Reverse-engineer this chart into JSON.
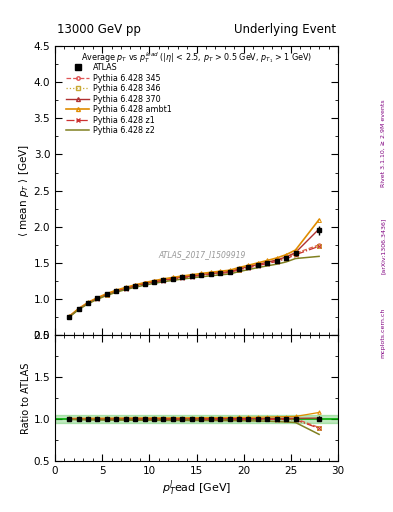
{
  "title_left": "13000 GeV pp",
  "title_right": "Underlying Event",
  "watermark": "ATLAS_2017_I1509919",
  "ylim_main": [
    0.5,
    4.5
  ],
  "ylim_ratio": [
    0.5,
    2.0
  ],
  "xlim": [
    0,
    30
  ],
  "x_data": [
    1.5,
    2.5,
    3.5,
    4.5,
    5.5,
    6.5,
    7.5,
    8.5,
    9.5,
    10.5,
    11.5,
    12.5,
    13.5,
    14.5,
    15.5,
    16.5,
    17.5,
    18.5,
    19.5,
    20.5,
    21.5,
    22.5,
    23.5,
    24.5,
    25.5,
    28.0
  ],
  "atlas_y": [
    0.755,
    0.86,
    0.945,
    1.01,
    1.065,
    1.11,
    1.148,
    1.182,
    1.212,
    1.238,
    1.262,
    1.282,
    1.3,
    1.317,
    1.333,
    1.348,
    1.362,
    1.375,
    1.41,
    1.44,
    1.47,
    1.5,
    1.53,
    1.57,
    1.63,
    1.95
  ],
  "atlas_yerr": [
    0.015,
    0.01,
    0.008,
    0.007,
    0.006,
    0.006,
    0.005,
    0.005,
    0.005,
    0.005,
    0.005,
    0.005,
    0.005,
    0.005,
    0.005,
    0.005,
    0.005,
    0.005,
    0.008,
    0.008,
    0.01,
    0.012,
    0.015,
    0.02,
    0.03,
    0.06
  ],
  "p345_y": [
    0.755,
    0.86,
    0.945,
    1.01,
    1.065,
    1.112,
    1.15,
    1.185,
    1.215,
    1.24,
    1.263,
    1.283,
    1.302,
    1.319,
    1.335,
    1.35,
    1.364,
    1.377,
    1.413,
    1.443,
    1.473,
    1.503,
    1.533,
    1.573,
    1.633,
    1.75
  ],
  "p346_y": [
    0.755,
    0.858,
    0.942,
    1.007,
    1.062,
    1.108,
    1.146,
    1.18,
    1.21,
    1.236,
    1.259,
    1.279,
    1.298,
    1.315,
    1.331,
    1.346,
    1.36,
    1.373,
    1.408,
    1.438,
    1.468,
    1.497,
    1.526,
    1.565,
    1.623,
    1.74
  ],
  "p370_y": [
    0.757,
    0.862,
    0.947,
    1.012,
    1.067,
    1.114,
    1.152,
    1.187,
    1.217,
    1.243,
    1.266,
    1.286,
    1.305,
    1.322,
    1.338,
    1.353,
    1.367,
    1.38,
    1.416,
    1.447,
    1.478,
    1.509,
    1.54,
    1.582,
    1.643,
    1.97
  ],
  "pambt1_y": [
    0.76,
    0.867,
    0.953,
    1.019,
    1.075,
    1.122,
    1.161,
    1.196,
    1.227,
    1.254,
    1.278,
    1.299,
    1.318,
    1.336,
    1.353,
    1.369,
    1.384,
    1.398,
    1.435,
    1.467,
    1.5,
    1.533,
    1.568,
    1.613,
    1.678,
    2.1
  ],
  "pz1_y": [
    0.753,
    0.857,
    0.94,
    1.005,
    1.059,
    1.105,
    1.143,
    1.177,
    1.207,
    1.232,
    1.255,
    1.275,
    1.293,
    1.31,
    1.326,
    1.341,
    1.354,
    1.367,
    1.402,
    1.431,
    1.461,
    1.49,
    1.518,
    1.556,
    1.612,
    1.73
  ],
  "pz2_y": [
    0.75,
    0.852,
    0.934,
    0.997,
    1.05,
    1.094,
    1.131,
    1.163,
    1.192,
    1.217,
    1.239,
    1.258,
    1.276,
    1.292,
    1.307,
    1.321,
    1.334,
    1.346,
    1.379,
    1.407,
    1.434,
    1.459,
    1.482,
    1.513,
    1.56,
    1.59
  ],
  "color_345": "#e05555",
  "color_346": "#c8a832",
  "color_370": "#b03030",
  "color_ambt1": "#e08c00",
  "color_z1": "#cc3030",
  "color_z2": "#808020",
  "color_atlas": "#000000",
  "color_green_line": "#00aa00",
  "bg_color": "#ffffff"
}
